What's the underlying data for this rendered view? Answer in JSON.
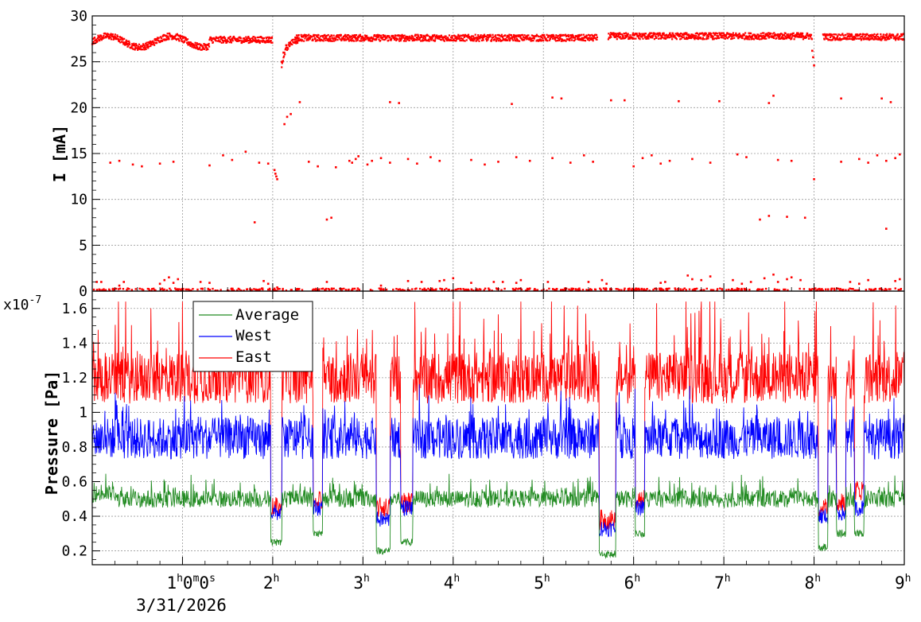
{
  "chart_data": [
    {
      "type": "scatter",
      "ylabel": "I [mA]",
      "ylim": [
        0,
        30
      ],
      "yticks": [
        0,
        5,
        10,
        15,
        20,
        25,
        30
      ],
      "grid": true,
      "color": "#ff0000",
      "series": [
        {
          "segments": [
            {
              "x0": 0.0,
              "x1": 2.0,
              "level": 27.4
            },
            {
              "x0": 2.25,
              "x1": 5.6,
              "level": 27.6
            },
            {
              "x0": 5.72,
              "x1": 7.98,
              "level": 27.8
            },
            {
              "x0": 8.1,
              "x1": 9.0,
              "level": 27.7
            }
          ],
          "points": [
            [
              2.02,
              13.2
            ],
            [
              2.03,
              12.8
            ],
            [
              2.04,
              12.5
            ],
            [
              2.05,
              12.2
            ],
            [
              2.13,
              18.2
            ],
            [
              2.16,
              19.0
            ],
            [
              2.2,
              19.3
            ],
            [
              2.3,
              20.6
            ],
            [
              2.1,
              25.0
            ],
            [
              2.12,
              26.0
            ],
            [
              2.15,
              26.8
            ],
            [
              2.19,
              27.0
            ],
            [
              7.98,
              26.2
            ],
            [
              7.99,
              25.5
            ],
            [
              8.0,
              24.6
            ],
            [
              0.2,
              14.0
            ],
            [
              0.3,
              14.2
            ],
            [
              0.45,
              13.8
            ],
            [
              0.55,
              13.6
            ],
            [
              0.75,
              13.9
            ],
            [
              0.9,
              14.1
            ],
            [
              1.3,
              13.7
            ],
            [
              1.45,
              14.8
            ],
            [
              1.55,
              14.3
            ],
            [
              1.7,
              15.2
            ],
            [
              1.85,
              14.0
            ],
            [
              1.95,
              13.9
            ],
            [
              2.4,
              14.1
            ],
            [
              2.5,
              13.6
            ],
            [
              2.7,
              13.5
            ],
            [
              2.85,
              14.2
            ],
            [
              2.88,
              14.0
            ],
            [
              2.92,
              14.4
            ],
            [
              2.95,
              14.7
            ],
            [
              3.05,
              13.8
            ],
            [
              3.1,
              14.2
            ],
            [
              3.2,
              14.5
            ],
            [
              3.3,
              14.0
            ],
            [
              3.5,
              14.4
            ],
            [
              3.6,
              13.9
            ],
            [
              3.75,
              14.6
            ],
            [
              3.85,
              14.2
            ],
            [
              4.2,
              14.3
            ],
            [
              4.35,
              13.8
            ],
            [
              4.5,
              14.1
            ],
            [
              4.7,
              14.6
            ],
            [
              4.85,
              14.2
            ],
            [
              5.1,
              14.5
            ],
            [
              5.3,
              14.0
            ],
            [
              5.45,
              14.8
            ],
            [
              5.55,
              14.1
            ],
            [
              6.0,
              13.6
            ],
            [
              6.1,
              14.5
            ],
            [
              6.2,
              14.8
            ],
            [
              6.3,
              13.9
            ],
            [
              6.4,
              14.2
            ],
            [
              6.65,
              14.4
            ],
            [
              6.85,
              14.0
            ],
            [
              7.15,
              14.9
            ],
            [
              7.25,
              14.6
            ],
            [
              7.6,
              14.3
            ],
            [
              7.75,
              14.2
            ],
            [
              8.3,
              14.1
            ],
            [
              8.5,
              14.4
            ],
            [
              8.6,
              14.0
            ],
            [
              8.7,
              14.8
            ],
            [
              8.8,
              14.2
            ],
            [
              8.9,
              14.5
            ],
            [
              8.95,
              14.9
            ],
            [
              8.0,
              12.2
            ],
            [
              1.8,
              7.5
            ],
            [
              2.6,
              7.8
            ],
            [
              2.65,
              8.0
            ],
            [
              7.4,
              7.8
            ],
            [
              7.5,
              8.2
            ],
            [
              7.7,
              8.1
            ],
            [
              7.9,
              8.0
            ],
            [
              8.8,
              6.8
            ],
            [
              3.3,
              20.6
            ],
            [
              3.4,
              20.5
            ],
            [
              4.65,
              20.4
            ],
            [
              5.1,
              21.1
            ],
            [
              5.2,
              21.0
            ],
            [
              5.75,
              20.8
            ],
            [
              5.9,
              20.8
            ],
            [
              6.5,
              20.7
            ],
            [
              6.95,
              20.7
            ],
            [
              7.5,
              20.5
            ],
            [
              7.55,
              21.3
            ],
            [
              8.3,
              21.0
            ],
            [
              8.75,
              21.0
            ],
            [
              8.85,
              20.6
            ],
            [
              0.05,
              1.0
            ],
            [
              0.1,
              1.0
            ],
            [
              0.3,
              0.6
            ],
            [
              0.35,
              1.0
            ],
            [
              0.75,
              0.8
            ],
            [
              0.8,
              1.2
            ],
            [
              0.85,
              1.5
            ],
            [
              0.9,
              0.9
            ],
            [
              0.95,
              1.3
            ],
            [
              1.2,
              1.0
            ],
            [
              1.3,
              0.9
            ],
            [
              1.9,
              1.1
            ],
            [
              1.95,
              0.8
            ],
            [
              2.05,
              0.4
            ],
            [
              2.6,
              1.0
            ],
            [
              3.2,
              0.6
            ],
            [
              3.5,
              1.1
            ],
            [
              3.65,
              1.0
            ],
            [
              3.85,
              1.1
            ],
            [
              3.9,
              1.2
            ],
            [
              4.0,
              1.4
            ],
            [
              4.2,
              0.9
            ],
            [
              4.45,
              1.0
            ],
            [
              4.55,
              1.0
            ],
            [
              4.7,
              0.9
            ],
            [
              4.75,
              1.2
            ],
            [
              5.05,
              1.0
            ],
            [
              5.5,
              1.0
            ],
            [
              5.65,
              1.2
            ],
            [
              5.7,
              0.8
            ],
            [
              6.3,
              0.9
            ],
            [
              6.35,
              1.0
            ],
            [
              6.6,
              1.7
            ],
            [
              6.65,
              1.3
            ],
            [
              6.75,
              1.2
            ],
            [
              6.85,
              1.6
            ],
            [
              7.1,
              1.2
            ],
            [
              7.2,
              0.8
            ],
            [
              7.3,
              1.0
            ],
            [
              7.45,
              1.4
            ],
            [
              7.55,
              1.8
            ],
            [
              7.6,
              1.0
            ],
            [
              7.7,
              1.3
            ],
            [
              7.75,
              1.5
            ],
            [
              7.85,
              1.2
            ],
            [
              8.4,
              1.0
            ],
            [
              8.5,
              0.8
            ],
            [
              8.6,
              1.2
            ],
            [
              8.9,
              1.1
            ],
            [
              8.95,
              1.3
            ]
          ]
        }
      ]
    },
    {
      "type": "line",
      "ylabel": "Pressure [Pa]",
      "y_multiplier": "x10",
      "y_multiplier_exp": "-7",
      "ylim": [
        0.12,
        1.7
      ],
      "yticks": [
        "0.2",
        "0.4",
        "0.6",
        "0.8",
        "1",
        "1.2",
        "1.4",
        "1.6"
      ],
      "grid": true,
      "legend_placement": "top-left",
      "series": [
        {
          "name": "Average",
          "color": "#228b22",
          "base": 0.5,
          "amp": 0.05,
          "spike": 0.1
        },
        {
          "name": "West",
          "color": "#0000ff",
          "base": 0.85,
          "amp": 0.12,
          "spike": 0.2
        },
        {
          "name": "East",
          "color": "#ff0000",
          "base": 1.2,
          "amp": 0.15,
          "spike": 0.4
        }
      ],
      "dips": [
        {
          "x0": 1.98,
          "x1": 2.1,
          "avg": 0.25,
          "west": 0.42,
          "east": 0.45
        },
        {
          "x0": 2.45,
          "x1": 2.55,
          "avg": 0.3,
          "west": 0.45,
          "east": 0.5
        },
        {
          "x0": 3.15,
          "x1": 3.3,
          "avg": 0.2,
          "west": 0.38,
          "east": 0.45
        },
        {
          "x0": 3.42,
          "x1": 3.55,
          "avg": 0.25,
          "west": 0.45,
          "east": 0.48
        },
        {
          "x0": 5.62,
          "x1": 5.8,
          "avg": 0.18,
          "west": 0.33,
          "east": 0.38
        },
        {
          "x0": 6.02,
          "x1": 6.12,
          "avg": 0.3,
          "west": 0.45,
          "east": 0.5
        },
        {
          "x0": 8.05,
          "x1": 8.15,
          "avg": 0.22,
          "west": 0.4,
          "east": 0.45
        },
        {
          "x0": 8.25,
          "x1": 8.35,
          "avg": 0.3,
          "west": 0.42,
          "east": 0.48
        },
        {
          "x0": 8.45,
          "x1": 8.55,
          "avg": 0.3,
          "west": 0.45,
          "east": 0.55
        }
      ]
    }
  ],
  "x_axis": {
    "range": [
      0,
      9
    ],
    "ticks": [
      {
        "v": 1,
        "text": "1",
        "sup": "h",
        "rest": [
          {
            "t": "0",
            "s": "m"
          },
          {
            "t": "0",
            "s": "s"
          }
        ]
      },
      {
        "v": 2,
        "text": "2",
        "sup": "h",
        "rest": []
      },
      {
        "v": 3,
        "text": "3",
        "sup": "h",
        "rest": []
      },
      {
        "v": 4,
        "text": "4",
        "sup": "h",
        "rest": []
      },
      {
        "v": 5,
        "text": "5",
        "sup": "h",
        "rest": []
      },
      {
        "v": 6,
        "text": "6",
        "sup": "h",
        "rest": []
      },
      {
        "v": 7,
        "text": "7",
        "sup": "h",
        "rest": []
      },
      {
        "v": 8,
        "text": "8",
        "sup": "h",
        "rest": []
      },
      {
        "v": 9,
        "text": "9",
        "sup": "h",
        "rest": []
      }
    ],
    "date_label": "3/31/2026"
  }
}
